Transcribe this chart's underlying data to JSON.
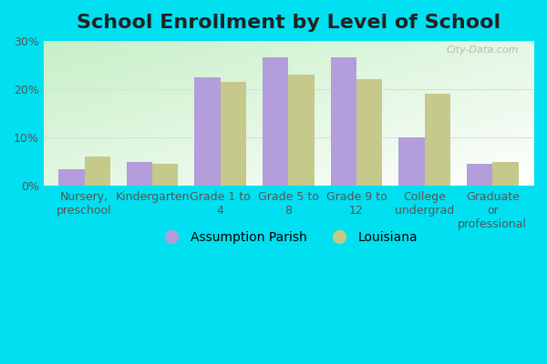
{
  "title": "School Enrollment by Level of School",
  "categories": [
    "Nursery,\npreschool",
    "Kindergarten",
    "Grade 1 to\n4",
    "Grade 5 to\n8",
    "Grade 9 to\n12",
    "College\nundergrad",
    "Graduate\nor\nprofessional"
  ],
  "assumption_parish": [
    3.5,
    5.0,
    22.5,
    26.5,
    26.5,
    10.0,
    4.5
  ],
  "louisiana": [
    6.0,
    4.5,
    21.5,
    23.0,
    22.0,
    19.0,
    5.0
  ],
  "bar_color_parish": "#b39ddb",
  "bar_color_louisiana": "#c5c98a",
  "background_outer": "#00e0f0",
  "background_inner_topleft": "#c8e8c8",
  "background_inner_bottomright": "#f5fff5",
  "ylim": [
    0,
    30
  ],
  "yticks": [
    0,
    10,
    20,
    30
  ],
  "ytick_labels": [
    "0%",
    "10%",
    "20%",
    "30%"
  ],
  "legend_parish": "Assumption Parish",
  "legend_louisiana": "Louisiana",
  "title_fontsize": 16,
  "tick_fontsize": 9,
  "legend_fontsize": 10,
  "bar_width": 0.38,
  "grid_color": "#dddddd",
  "watermark": "City-Data.com"
}
